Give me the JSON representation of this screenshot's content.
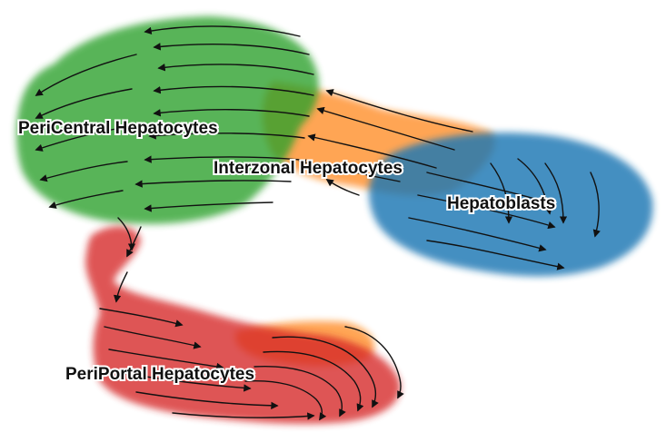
{
  "clusters": [
    {
      "key": "pericentral",
      "label": "PeriCentral Hepatocytes",
      "color": "#2ca02c"
    },
    {
      "key": "interzonal",
      "label": "Interzonal Hepatocytes",
      "color": "#ff7f0e"
    },
    {
      "key": "hepatoblasts",
      "label": "Hepatoblasts",
      "color": "#1f77b4"
    },
    {
      "key": "periportal",
      "label": "PeriPortal Hepatocytes",
      "color": "#d62728"
    }
  ],
  "arrow_color": "#111111",
  "background": "#ffffff"
}
